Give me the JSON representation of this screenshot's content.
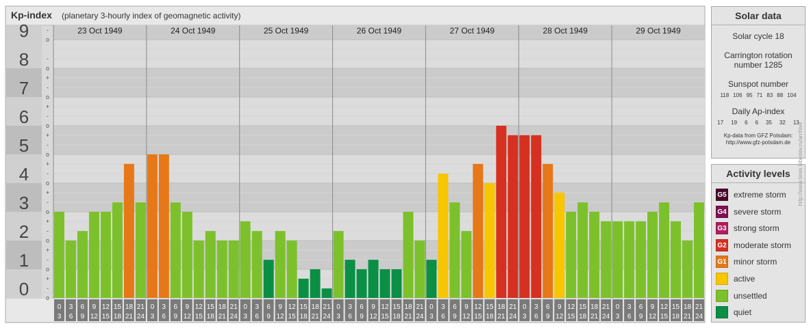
{
  "header": {
    "title": "Kp-index",
    "subtitle": "(planetary 3-hourly index of geomagnetic activity)"
  },
  "chart_data": {
    "type": "bar",
    "ylim": [
      0,
      9
    ],
    "y_ticks": [
      "0",
      "1",
      "2",
      "3",
      "4",
      "5",
      "6",
      "7",
      "8",
      "9"
    ],
    "minor_marks": [
      "-",
      "o",
      "+"
    ],
    "days": [
      {
        "date": "23 Oct 1949",
        "kp": [
          3.0,
          2.0,
          2.33,
          3.0,
          3.0,
          3.33,
          4.67,
          3.33
        ]
      },
      {
        "date": "24 Oct 1949",
        "kp": [
          5.0,
          5.0,
          3.33,
          3.0,
          2.0,
          2.33,
          2.0,
          2.0
        ]
      },
      {
        "date": "25 Oct 1949",
        "kp": [
          2.67,
          2.33,
          1.33,
          2.33,
          2.0,
          0.67,
          1.0,
          0.33
        ]
      },
      {
        "date": "26 Oct 1949",
        "kp": [
          2.33,
          1.33,
          1.0,
          1.33,
          1.0,
          1.0,
          3.0,
          2.0
        ]
      },
      {
        "date": "27 Oct 1949",
        "kp": [
          1.33,
          4.33,
          3.33,
          2.33,
          4.67,
          4.0,
          6.0,
          5.67
        ]
      },
      {
        "date": "28 Oct 1949",
        "kp": [
          5.67,
          5.67,
          4.67,
          3.67,
          3.0,
          3.33,
          3.0,
          2.67
        ]
      },
      {
        "date": "29 Oct 1949",
        "kp": [
          2.67,
          2.67,
          2.67,
          3.0,
          3.33,
          2.67,
          2.0,
          3.33
        ]
      }
    ],
    "hour_ranges": [
      [
        "0",
        "3"
      ],
      [
        "3",
        "6"
      ],
      [
        "6",
        "9"
      ],
      [
        "9",
        "12"
      ],
      [
        "12",
        "15"
      ],
      [
        "15",
        "18"
      ],
      [
        "18",
        "21"
      ],
      [
        "21",
        "24"
      ]
    ],
    "color_scale": [
      {
        "max": 1.5,
        "level": "quiet",
        "color": "#0a8f45"
      },
      {
        "max": 3.5,
        "level": "unsettled",
        "color": "#7cc12b"
      },
      {
        "max": 4.5,
        "level": "active",
        "color": "#f8c501"
      },
      {
        "max": 5.5,
        "level": "minor storm",
        "color": "#e67818"
      },
      {
        "max": 6.5,
        "level": "moderate storm",
        "color": "#d63020"
      },
      {
        "max": 7.5,
        "level": "strong storm",
        "color": "#b01e5e"
      },
      {
        "max": 8.5,
        "level": "severe storm",
        "color": "#7d1252"
      },
      {
        "max": 9.1,
        "level": "extreme storm",
        "color": "#4a0a2a"
      }
    ]
  },
  "solar": {
    "title": "Solar data",
    "cycle": "Solar cycle 18",
    "carrington_1": "Carrington rotation",
    "carrington_2": "number 1285",
    "sunspot_title": "Sunspot number",
    "sunspots": [
      "118",
      "106",
      "95",
      "71",
      "83",
      "88",
      "104"
    ],
    "ap_title": "Daily Ap-index",
    "ap": [
      "17",
      "19",
      "6",
      "6",
      "35",
      "32",
      "13"
    ],
    "source_1": "Kp-data from GFZ Potsdam:",
    "source_2": "http://www.gfz-potsdam.de"
  },
  "activity": {
    "title": "Activity levels",
    "levels": [
      {
        "code": "G5",
        "label": "extreme storm",
        "color": "#4a0a2a"
      },
      {
        "code": "G4",
        "label": "severe storm",
        "color": "#7d1252"
      },
      {
        "code": "G3",
        "label": "strong storm",
        "color": "#b01e5e"
      },
      {
        "code": "G2",
        "label": "moderate storm",
        "color": "#d63020"
      },
      {
        "code": "G1",
        "label": "minor storm",
        "color": "#e67818"
      },
      {
        "code": "",
        "label": "active",
        "color": "#f8c501"
      },
      {
        "code": "",
        "label": "unsettled",
        "color": "#7cc12b"
      },
      {
        "code": "",
        "label": "quiet",
        "color": "#0a8f45"
      }
    ]
  },
  "watermark": "http://www.tesis.lebedev.ru/archive"
}
